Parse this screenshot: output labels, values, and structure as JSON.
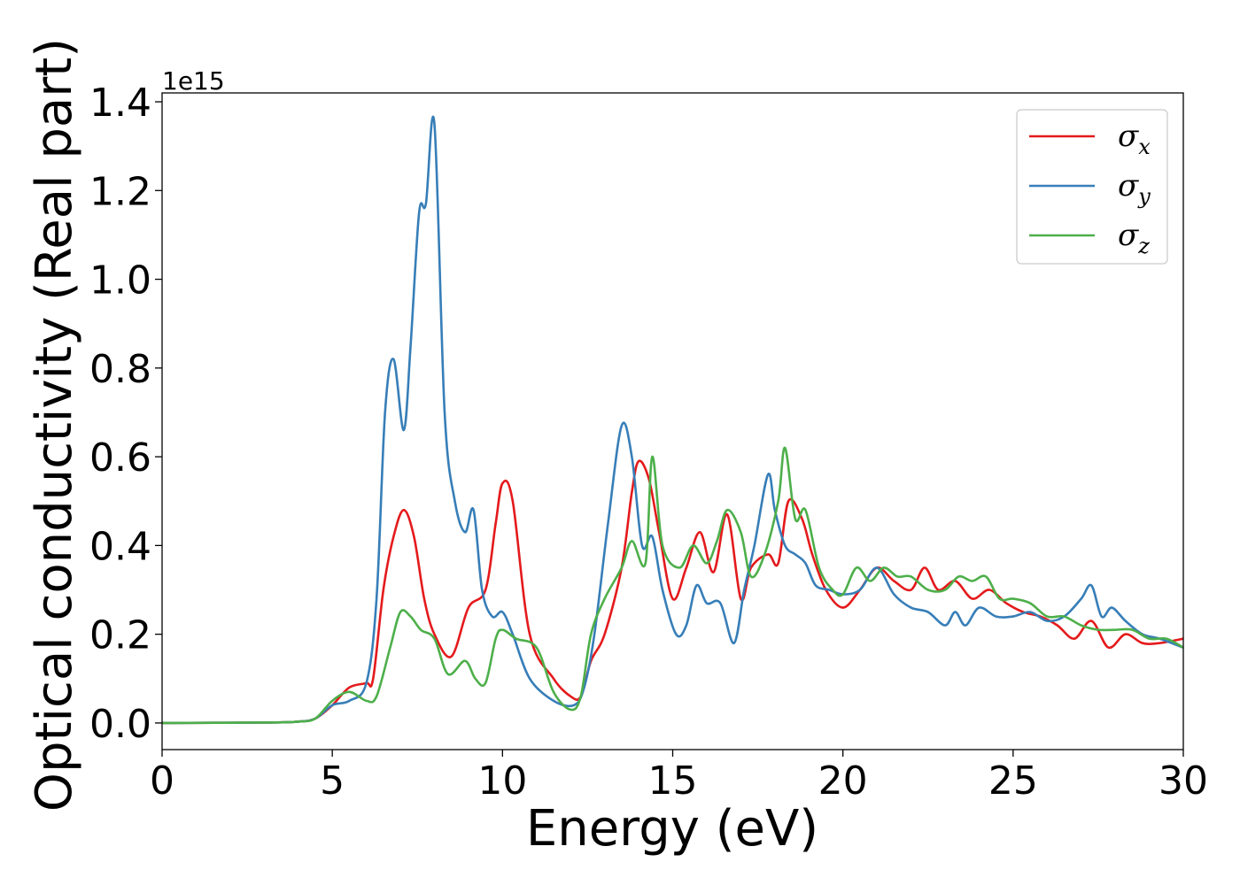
{
  "chart_data": {
    "type": "line",
    "xlabel": "Energy (eV)",
    "ylabel": "Optical conductivity (Real part)",
    "y_offset_label": "1e15",
    "xlim": [
      0,
      30
    ],
    "ylim": [
      -0.06,
      1.42
    ],
    "x_ticks": [
      0,
      5,
      10,
      15,
      20,
      25,
      30
    ],
    "x_tick_labels": [
      "0",
      "5",
      "10",
      "15",
      "20",
      "25",
      "30"
    ],
    "y_ticks": [
      0.0,
      0.2,
      0.4,
      0.6,
      0.8,
      1.0,
      1.2,
      1.4
    ],
    "y_tick_labels": [
      "0.0",
      "0.2",
      "0.4",
      "0.6",
      "0.8",
      "1.0",
      "1.2",
      "1.4"
    ],
    "grid": false,
    "legend_position": "top-right",
    "series": [
      {
        "name": "σx",
        "sym": "σ",
        "sub": "x",
        "color": "#e41a1c",
        "x": [
          0,
          3,
          4,
          4.5,
          5,
          5.5,
          6,
          6.2,
          6.5,
          6.8,
          7.1,
          7.4,
          7.7,
          8,
          8.5,
          9,
          9.5,
          9.8,
          10,
          10.3,
          10.8,
          11.5,
          12,
          12.3,
          12.6,
          13,
          13.5,
          13.8,
          14,
          14.3,
          14.6,
          15,
          15.4,
          15.8,
          16.2,
          16.6,
          17,
          17.3,
          17.8,
          18.1,
          18.4,
          18.8,
          19.1,
          19.5,
          20,
          20.5,
          21,
          21.5,
          22,
          22.4,
          22.8,
          23.3,
          23.8,
          24.3,
          24.8,
          25.3,
          25.8,
          26.3,
          26.8,
          27.3,
          27.8,
          28.3,
          28.8,
          29.3,
          30
        ],
        "y": [
          0,
          0.001,
          0.003,
          0.01,
          0.04,
          0.08,
          0.09,
          0.1,
          0.3,
          0.42,
          0.48,
          0.42,
          0.28,
          0.2,
          0.15,
          0.26,
          0.3,
          0.45,
          0.54,
          0.5,
          0.2,
          0.1,
          0.06,
          0.06,
          0.14,
          0.2,
          0.35,
          0.52,
          0.59,
          0.55,
          0.43,
          0.28,
          0.35,
          0.43,
          0.34,
          0.47,
          0.28,
          0.35,
          0.38,
          0.36,
          0.5,
          0.46,
          0.38,
          0.3,
          0.26,
          0.3,
          0.35,
          0.32,
          0.3,
          0.35,
          0.3,
          0.32,
          0.28,
          0.3,
          0.27,
          0.25,
          0.24,
          0.22,
          0.19,
          0.23,
          0.17,
          0.2,
          0.18,
          0.18,
          0.19
        ]
      },
      {
        "name": "σy",
        "sym": "σ",
        "sub": "y",
        "color": "#377eb8",
        "x": [
          0,
          3,
          4,
          4.5,
          5,
          5.5,
          6,
          6.3,
          6.55,
          6.8,
          7.1,
          7.3,
          7.55,
          7.75,
          8,
          8.3,
          8.6,
          8.9,
          9.15,
          9.4,
          9.7,
          10,
          10.3,
          10.8,
          11.5,
          12.1,
          12.4,
          12.7,
          13.1,
          13.5,
          13.8,
          14.1,
          14.4,
          14.7,
          15.1,
          15.4,
          15.7,
          16,
          16.4,
          16.8,
          17.1,
          17.4,
          17.8,
          18,
          18.3,
          18.6,
          18.9,
          19.2,
          19.6,
          20,
          20.5,
          21,
          21.5,
          22,
          22.5,
          23,
          23.3,
          23.6,
          24,
          24.5,
          25,
          25.5,
          26,
          26.5,
          27,
          27.3,
          27.6,
          27.9,
          28.3,
          28.8,
          29.3,
          30
        ],
        "y": [
          0,
          0.001,
          0.003,
          0.01,
          0.04,
          0.05,
          0.09,
          0.28,
          0.7,
          0.82,
          0.66,
          0.85,
          1.15,
          1.17,
          1.35,
          0.7,
          0.5,
          0.43,
          0.48,
          0.3,
          0.24,
          0.25,
          0.2,
          0.1,
          0.05,
          0.04,
          0.08,
          0.2,
          0.45,
          0.67,
          0.6,
          0.4,
          0.42,
          0.3,
          0.2,
          0.22,
          0.31,
          0.27,
          0.27,
          0.18,
          0.3,
          0.4,
          0.56,
          0.48,
          0.4,
          0.38,
          0.36,
          0.31,
          0.3,
          0.29,
          0.3,
          0.35,
          0.29,
          0.26,
          0.25,
          0.22,
          0.25,
          0.22,
          0.26,
          0.24,
          0.24,
          0.25,
          0.23,
          0.24,
          0.28,
          0.31,
          0.24,
          0.26,
          0.23,
          0.2,
          0.19,
          0.17
        ]
      },
      {
        "name": "σz",
        "sym": "σ",
        "sub": "z",
        "color": "#4daf4a",
        "x": [
          0,
          3,
          4,
          4.5,
          5,
          5.5,
          6,
          6.3,
          6.7,
          7,
          7.3,
          7.6,
          8,
          8.4,
          8.9,
          9.2,
          9.5,
          9.8,
          10,
          10.4,
          11,
          11.5,
          12,
          12.3,
          12.6,
          13,
          13.5,
          13.8,
          14.2,
          14.4,
          14.7,
          15.2,
          15.6,
          16,
          16.3,
          16.6,
          17,
          17.3,
          17.7,
          18.1,
          18.3,
          18.6,
          18.9,
          19.3,
          19.7,
          20,
          20.4,
          20.8,
          21.2,
          21.6,
          22,
          22.5,
          23,
          23.4,
          23.8,
          24.2,
          24.6,
          25,
          25.5,
          26,
          26.5,
          27,
          27.5,
          28,
          28.5,
          29,
          29.5,
          30
        ],
        "y": [
          0,
          0.001,
          0.003,
          0.01,
          0.05,
          0.07,
          0.05,
          0.06,
          0.17,
          0.25,
          0.24,
          0.21,
          0.19,
          0.11,
          0.14,
          0.1,
          0.09,
          0.19,
          0.21,
          0.19,
          0.17,
          0.07,
          0.03,
          0.06,
          0.2,
          0.28,
          0.35,
          0.41,
          0.36,
          0.6,
          0.4,
          0.35,
          0.4,
          0.36,
          0.41,
          0.48,
          0.43,
          0.33,
          0.38,
          0.5,
          0.62,
          0.46,
          0.48,
          0.35,
          0.3,
          0.29,
          0.35,
          0.32,
          0.35,
          0.33,
          0.33,
          0.3,
          0.3,
          0.33,
          0.32,
          0.33,
          0.28,
          0.28,
          0.27,
          0.24,
          0.24,
          0.22,
          0.21,
          0.21,
          0.21,
          0.19,
          0.19,
          0.17
        ]
      }
    ]
  }
}
